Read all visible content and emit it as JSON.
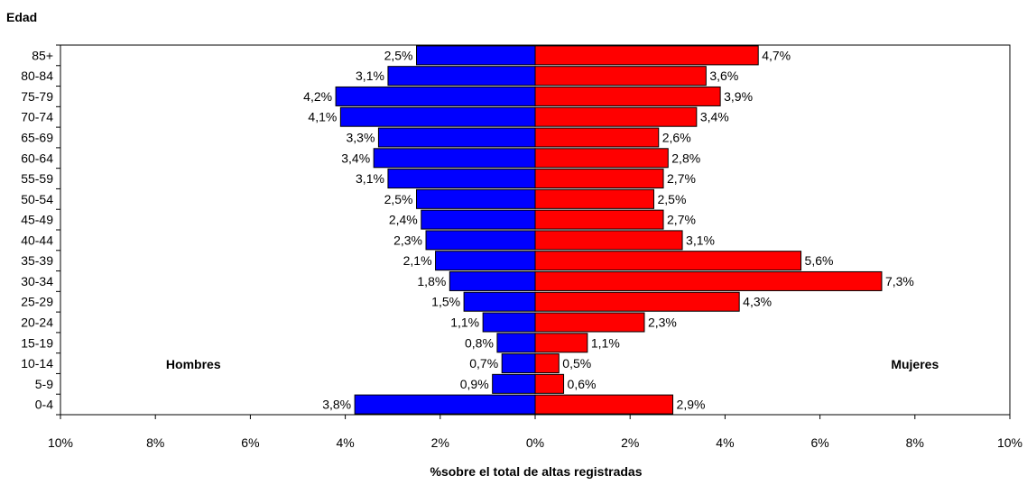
{
  "chart_data": {
    "type": "bar",
    "orientation": "horizontal-diverging",
    "ylabel": "Edad",
    "xlabel": "%sobre el total de altas registradas",
    "xlim": [
      -10,
      10
    ],
    "xticks": [
      "10%",
      "8%",
      "6%",
      "4%",
      "2%",
      "0%",
      "2%",
      "4%",
      "6%",
      "8%",
      "10%"
    ],
    "categories": [
      "85+",
      "80-84",
      "75-79",
      "70-74",
      "65-69",
      "60-64",
      "55-59",
      "50-54",
      "45-49",
      "40-44",
      "35-39",
      "30-34",
      "25-29",
      "20-24",
      "15-19",
      "10-14",
      "5-9",
      "0-4"
    ],
    "series": [
      {
        "name": "Hombres",
        "color": "#0000ff",
        "values": [
          2.5,
          3.1,
          4.2,
          4.1,
          3.3,
          3.4,
          3.1,
          2.5,
          2.4,
          2.3,
          2.1,
          1.8,
          1.5,
          1.1,
          0.8,
          0.7,
          0.9,
          3.8
        ],
        "labels": [
          "2,5%",
          "3,1%",
          "4,2%",
          "4,1%",
          "3,3%",
          "3,4%",
          "3,1%",
          "2,5%",
          "2,4%",
          "2,3%",
          "2,1%",
          "1,8%",
          "1,5%",
          "1,1%",
          "0,8%",
          "0,7%",
          "0,9%",
          "3,8%"
        ]
      },
      {
        "name": "Mujeres",
        "color": "#ff0000",
        "values": [
          4.7,
          3.6,
          3.9,
          3.4,
          2.6,
          2.8,
          2.7,
          2.5,
          2.7,
          3.1,
          5.6,
          7.3,
          4.3,
          2.3,
          1.1,
          0.5,
          0.6,
          2.9
        ],
        "labels": [
          "4,7%",
          "3,6%",
          "3,9%",
          "3,4%",
          "2,6%",
          "2,8%",
          "2,7%",
          "2,5%",
          "2,7%",
          "3,1%",
          "5,6%",
          "7,3%",
          "4,3%",
          "2,3%",
          "1,1%",
          "0,5%",
          "0,6%",
          "2,9%"
        ]
      }
    ],
    "grid": false,
    "legend": "inline-labels"
  }
}
